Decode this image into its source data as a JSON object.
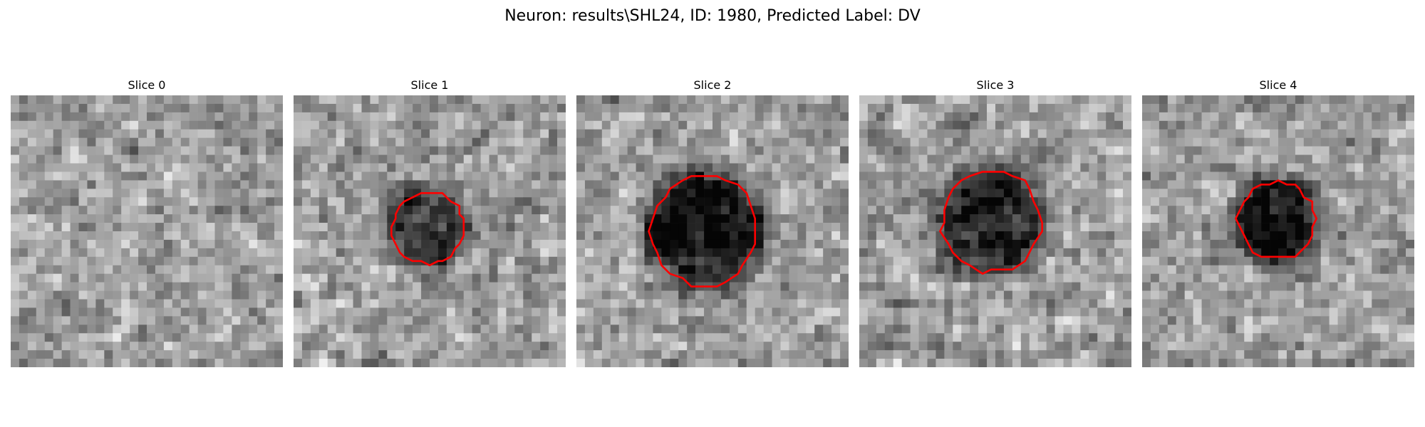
{
  "figure": {
    "title": "Neuron: results\\SHL24, ID: 1980, Predicted Label: DV"
  },
  "panels": [
    {
      "title": "Slice 0",
      "seed": 11,
      "has_contour": false,
      "blob": null
    },
    {
      "title": "Slice 1",
      "seed": 23,
      "has_contour": true,
      "blob": {
        "cx": 15.8,
        "cy": 15.6,
        "rx": 4.3,
        "ry": 4.2,
        "strength": 0.42
      }
    },
    {
      "title": "Slice 2",
      "seed": 37,
      "has_contour": true,
      "blob": {
        "cx": 15.0,
        "cy": 15.8,
        "rx": 6.2,
        "ry": 6.6,
        "strength": 0.55
      }
    },
    {
      "title": "Slice 3",
      "seed": 41,
      "has_contour": true,
      "blob": {
        "cx": 15.6,
        "cy": 14.8,
        "rx": 5.8,
        "ry": 6.0,
        "strength": 0.5
      }
    },
    {
      "title": "Slice 4",
      "seed": 53,
      "has_contour": true,
      "blob": {
        "cx": 15.8,
        "cy": 14.6,
        "rx": 4.5,
        "ry": 4.6,
        "strength": 0.55
      }
    }
  ],
  "style": {
    "contour_color": "#ff0000",
    "colormap": "gray"
  }
}
